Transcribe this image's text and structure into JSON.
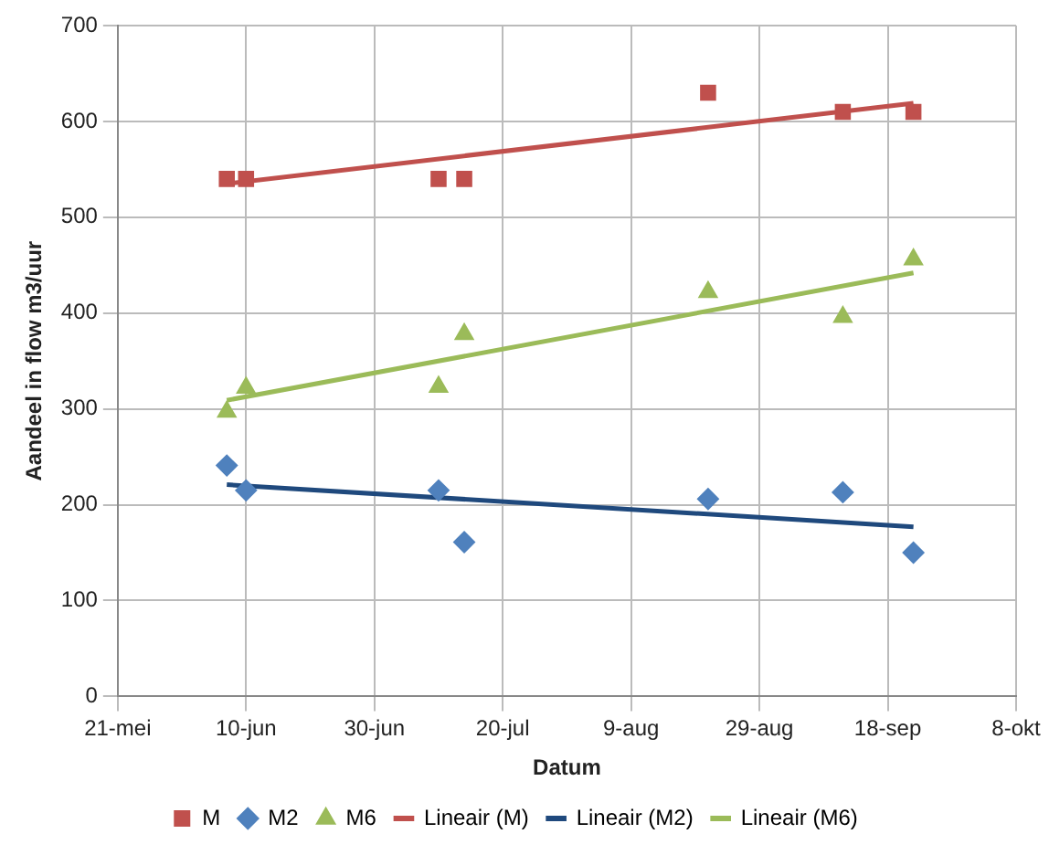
{
  "chart_data": {
    "type": "scatter",
    "xlabel": "Datum",
    "ylabel": "Aandeel in flow m3/uur",
    "xlim": [
      "--05-21",
      "--10-08"
    ],
    "xticks": [
      {
        "value": "--05-21",
        "label": "21-mei"
      },
      {
        "value": "--06-10",
        "label": "10-jun"
      },
      {
        "value": "--06-30",
        "label": "30-jun"
      },
      {
        "value": "--07-20",
        "label": "20-jul"
      },
      {
        "value": "--08-09",
        "label": "9-aug"
      },
      {
        "value": "--08-29",
        "label": "29-aug"
      },
      {
        "value": "--09-18",
        "label": "18-sep"
      },
      {
        "value": "--10-08",
        "label": "8-okt"
      }
    ],
    "ylim": [
      0,
      700
    ],
    "yticks": [
      0,
      100,
      200,
      300,
      400,
      500,
      600,
      700
    ],
    "grid": true,
    "legend": "bottom",
    "x": [
      "--06-07",
      "--06-10",
      "--07-10",
      "--07-14",
      "--08-21",
      "--09-11",
      "--09-22"
    ],
    "series": [
      {
        "name": "M",
        "type": "scatter",
        "marker": "square",
        "color": "#c0504d",
        "values": [
          540,
          540,
          540,
          540,
          630,
          610,
          610
        ]
      },
      {
        "name": "M2",
        "type": "scatter",
        "marker": "diamond",
        "color": "#4f81bd",
        "values": [
          241,
          215,
          215,
          161,
          206,
          213,
          150
        ]
      },
      {
        "name": "M6",
        "type": "scatter",
        "marker": "triangle",
        "color": "#9bbb59",
        "values": [
          297,
          322,
          323,
          378,
          422,
          396,
          456
        ]
      },
      {
        "name": "Lineair (M)",
        "type": "line",
        "marker": "none",
        "color": "#c0504d",
        "x": [
          "--06-07",
          "--09-22"
        ],
        "values": [
          535,
          619
        ]
      },
      {
        "name": "Lineair (M2)",
        "type": "line",
        "marker": "none",
        "color": "#1f497d",
        "x": [
          "--06-07",
          "--09-22"
        ],
        "values": [
          221,
          177
        ]
      },
      {
        "name": "Lineair (M6)",
        "type": "line",
        "marker": "none",
        "color": "#9bbb59",
        "x": [
          "--06-07",
          "--09-22"
        ],
        "values": [
          309,
          442
        ]
      }
    ]
  }
}
